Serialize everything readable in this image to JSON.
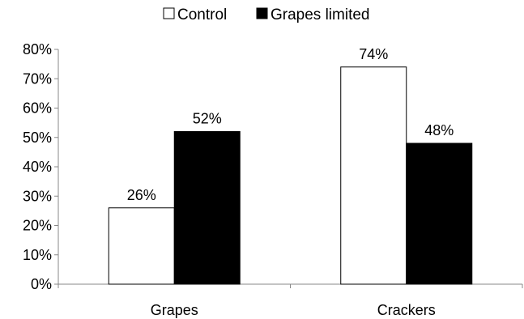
{
  "chart_data": {
    "type": "bar",
    "categories": [
      "Grapes",
      "Crackers"
    ],
    "series": [
      {
        "name": "Control",
        "values": [
          26,
          74
        ],
        "labels": [
          "26%",
          "74%"
        ],
        "color": "#ffffff",
        "stroke": "#000000"
      },
      {
        "name": "Grapes limited",
        "values": [
          52,
          48
        ],
        "labels": [
          "52%",
          "48%"
        ],
        "color": "#000000",
        "stroke": "#000000"
      }
    ],
    "ylim": [
      0,
      80
    ],
    "yticks": [
      {
        "value": 0,
        "label": "0%"
      },
      {
        "value": 10,
        "label": "10%"
      },
      {
        "value": 20,
        "label": "20%"
      },
      {
        "value": 30,
        "label": "30%"
      },
      {
        "value": 40,
        "label": "40%"
      },
      {
        "value": 50,
        "label": "50%"
      },
      {
        "value": 60,
        "label": "60%"
      },
      {
        "value": 70,
        "label": "70%"
      },
      {
        "value": 80,
        "label": "80%"
      }
    ],
    "legend_position": "top-center",
    "grid": false
  }
}
